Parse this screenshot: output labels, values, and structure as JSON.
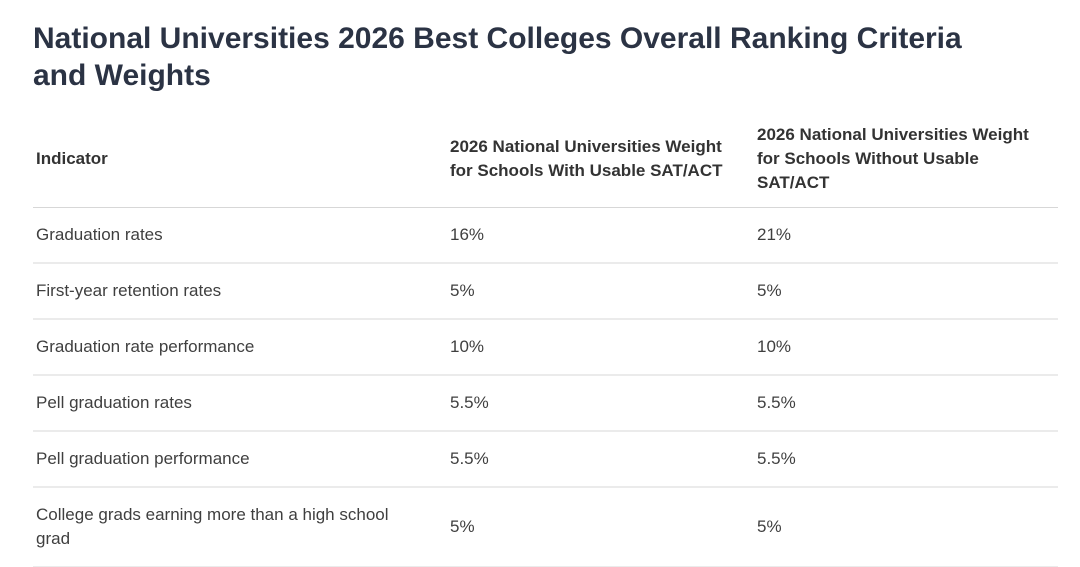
{
  "page": {
    "title": "National Universities 2026 Best Colleges Overall Ranking Criteria and Weights"
  },
  "chart_data": {
    "type": "table",
    "title": "National Universities 2026 Best Colleges Overall Ranking Criteria and Weights",
    "columns": [
      "Indicator",
      "2026 National Universities Weight for Schools With Usable SAT/ACT",
      "2026 National Universities Weight for Schools Without Usable SAT/ACT"
    ],
    "rows": [
      [
        "Graduation rates",
        "16%",
        "21%"
      ],
      [
        "First-year retention rates",
        "5%",
        "5%"
      ],
      [
        "Graduation rate performance",
        "10%",
        "10%"
      ],
      [
        "Pell graduation rates",
        "5.5%",
        "5.5%"
      ],
      [
        "Pell graduation performance",
        "5.5%",
        "5.5%"
      ],
      [
        "College grads earning more than a high school grad",
        "5%",
        "5%"
      ]
    ]
  },
  "colors": {
    "title": "#2b3344",
    "header_text": "#333333",
    "body_text": "#3f3f3f",
    "header_border": "#d7d7d7",
    "row_border": "#ebebeb",
    "background": "#ffffff"
  }
}
